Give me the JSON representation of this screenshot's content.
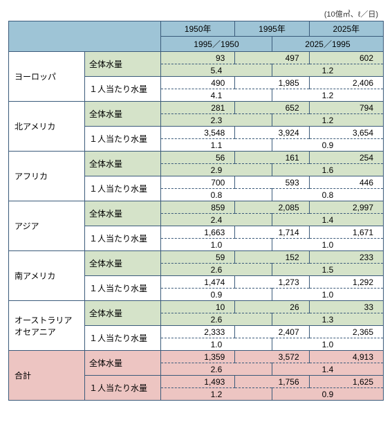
{
  "unit_label": "(10億㎥、ℓ／日)",
  "header": {
    "years": [
      "1950年",
      "1995年",
      "2025年"
    ],
    "ratios": [
      "1995／1950",
      "2025／1995"
    ]
  },
  "metric_labels": {
    "total": "全体水量",
    "per_capita": "１人当たり水量"
  },
  "colors": {
    "header_bg": "#9ec4d6",
    "green_bg": "#d5e3c9",
    "pink_bg": "#edc5c2",
    "white_bg": "#ffffff",
    "border": "#3a5a7a"
  },
  "regions": [
    {
      "name": "ヨーロッパ",
      "rows": [
        {
          "metric_key": "total",
          "shade": "green",
          "y1950": "93",
          "y1995": "497",
          "y2025": "602",
          "r1": "5.4",
          "r2": "1.2"
        },
        {
          "metric_key": "per_capita",
          "shade": "white",
          "y1950": "490",
          "y1995": "1,985",
          "y2025": "2,406",
          "r1": "4.1",
          "r2": "1.2"
        }
      ]
    },
    {
      "name": "北アメリカ",
      "rows": [
        {
          "metric_key": "total",
          "shade": "green",
          "y1950": "281",
          "y1995": "652",
          "y2025": "794",
          "r1": "2.3",
          "r2": "1.2"
        },
        {
          "metric_key": "per_capita",
          "shade": "white",
          "y1950": "3,548",
          "y1995": "3,924",
          "y2025": "3,654",
          "r1": "1.1",
          "r2": "0.9"
        }
      ]
    },
    {
      "name": "アフリカ",
      "rows": [
        {
          "metric_key": "total",
          "shade": "green",
          "y1950": "56",
          "y1995": "161",
          "y2025": "254",
          "r1": "2.9",
          "r2": "1.6"
        },
        {
          "metric_key": "per_capita",
          "shade": "white",
          "y1950": "700",
          "y1995": "593",
          "y2025": "446",
          "r1": "0.8",
          "r2": "0.8"
        }
      ]
    },
    {
      "name": "アジア",
      "rows": [
        {
          "metric_key": "total",
          "shade": "green",
          "y1950": "859",
          "y1995": "2,085",
          "y2025": "2,997",
          "r1": "2.4",
          "r2": "1.4"
        },
        {
          "metric_key": "per_capita",
          "shade": "white",
          "y1950": "1,663",
          "y1995": "1,714",
          "y2025": "1,671",
          "r1": "1.0",
          "r2": "1.0"
        }
      ]
    },
    {
      "name": "南アメリカ",
      "rows": [
        {
          "metric_key": "total",
          "shade": "green",
          "y1950": "59",
          "y1995": "152",
          "y2025": "233",
          "r1": "2.6",
          "r2": "1.5"
        },
        {
          "metric_key": "per_capita",
          "shade": "white",
          "y1950": "1,474",
          "y1995": "1,273",
          "y2025": "1,292",
          "r1": "0.9",
          "r2": "1.0"
        }
      ]
    },
    {
      "name": "オーストラリア\nオセアニア",
      "rows": [
        {
          "metric_key": "total",
          "shade": "green",
          "y1950": "10",
          "y1995": "26",
          "y2025": "33",
          "r1": "2.6",
          "r2": "1.3"
        },
        {
          "metric_key": "per_capita",
          "shade": "white",
          "y1950": "2,333",
          "y1995": "2,407",
          "y2025": "2,365",
          "r1": "1.0",
          "r2": "1.0"
        }
      ]
    }
  ],
  "total_region": {
    "name": "合計",
    "rows": [
      {
        "metric_key": "total",
        "shade": "pink",
        "y1950": "1,359",
        "y1995": "3,572",
        "y2025": "4,913",
        "r1": "2.6",
        "r2": "1.4"
      },
      {
        "metric_key": "per_capita",
        "shade": "pink",
        "y1950": "1,493",
        "y1995": "1,756",
        "y2025": "1,625",
        "r1": "1.2",
        "r2": "0.9"
      }
    ]
  }
}
